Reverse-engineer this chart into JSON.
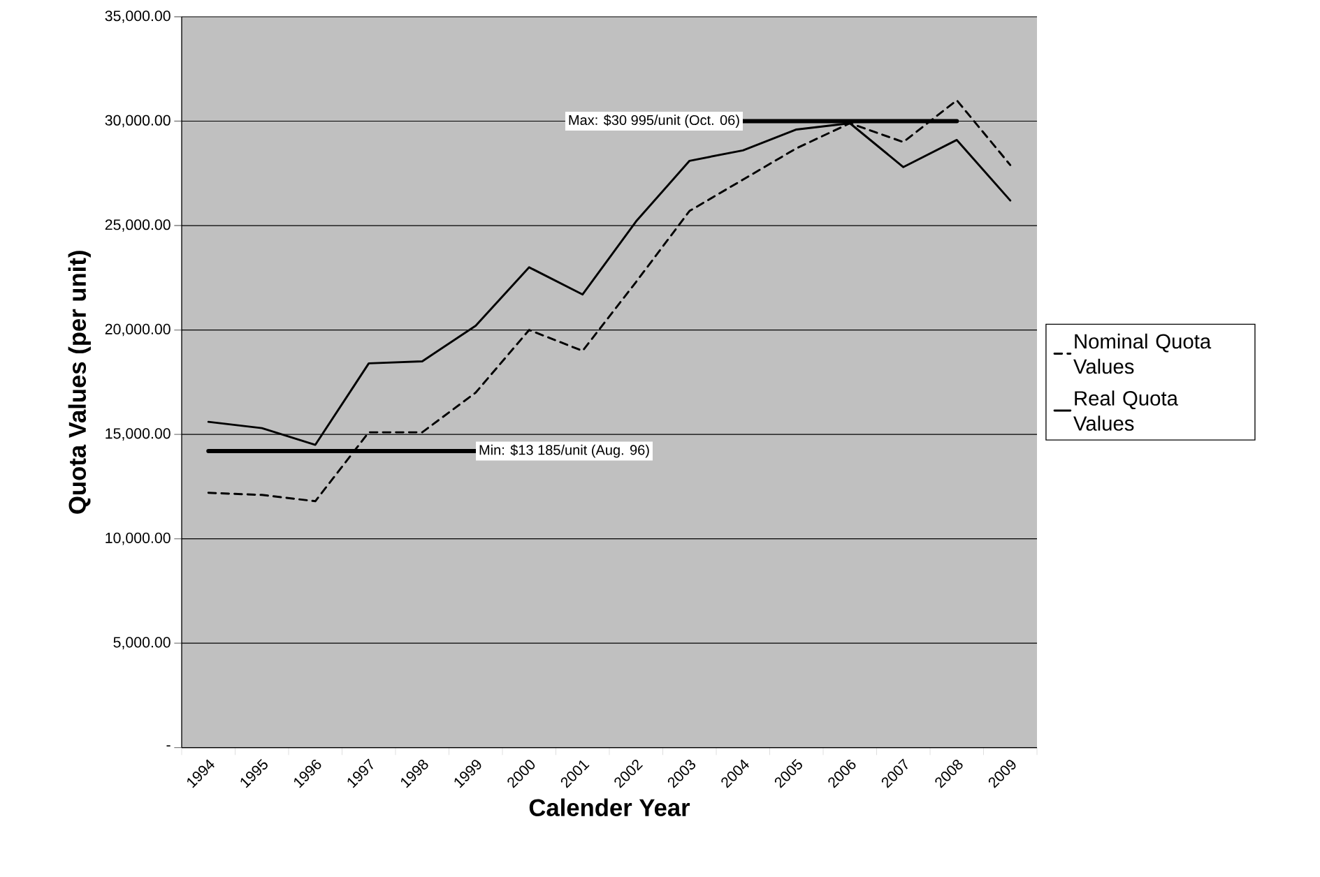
{
  "chart_data": {
    "type": "line",
    "xlabel": "Calender Year",
    "ylabel": "Quota Values (per unit)",
    "categories": [
      "1994",
      "1995",
      "1996",
      "1997",
      "1998",
      "1999",
      "2000",
      "2001",
      "2002",
      "2003",
      "2004",
      "2005",
      "2006",
      "2007",
      "2008",
      "2009"
    ],
    "series": [
      {
        "name": "Nominal Quota Values",
        "color": "#000000",
        "line_style": "dashed",
        "values": [
          12200,
          12100,
          11800,
          15100,
          15100,
          17000,
          20000,
          19000,
          22300,
          25700,
          27200,
          28700,
          29900,
          29000,
          31000,
          27900
        ]
      },
      {
        "name": "Real Quota Values",
        "color": "#000000",
        "line_style": "solid",
        "values": [
          15600,
          15300,
          14500,
          18400,
          18500,
          20200,
          23000,
          21700,
          25200,
          28100,
          28600,
          29600,
          29900,
          27800,
          29100,
          26200
        ]
      },
      {
        "color": "#000000",
        "line_style": "solid",
        "values": [
          14200,
          14200,
          14200,
          14200,
          14200,
          14200,
          null,
          null,
          null,
          null,
          null,
          null,
          null,
          null,
          null,
          null
        ]
      },
      {
        "color": "#000000",
        "line_style": "solid",
        "values": [
          null,
          null,
          null,
          null,
          null,
          null,
          null,
          null,
          null,
          null,
          30000,
          30000,
          30000,
          30000,
          30000,
          null
        ]
      }
    ],
    "annotations": [
      {
        "text": "Min: $13 185/unit (Aug. 96)",
        "x": "1999",
        "y": 14200
      },
      {
        "text": "Max: $30 995/unit (Oct. 06)",
        "x": "2004",
        "y": 30000
      }
    ],
    "ylim": [
      0,
      35000
    ],
    "yticks": [
      {
        "value": 0,
        "label": "-"
      },
      {
        "value": 5000,
        "label": "5,000.00"
      },
      {
        "value": 10000,
        "label": "10,000.00"
      },
      {
        "value": 15000,
        "label": "15,000.00"
      },
      {
        "value": 20000,
        "label": "20,000.00"
      },
      {
        "value": 25000,
        "label": "25,000.00"
      },
      {
        "value": 30000,
        "label": "30,000.00"
      },
      {
        "value": 35000,
        "label": "35,000.00"
      }
    ],
    "grid": "y",
    "legend": "right",
    "marker": "none"
  }
}
